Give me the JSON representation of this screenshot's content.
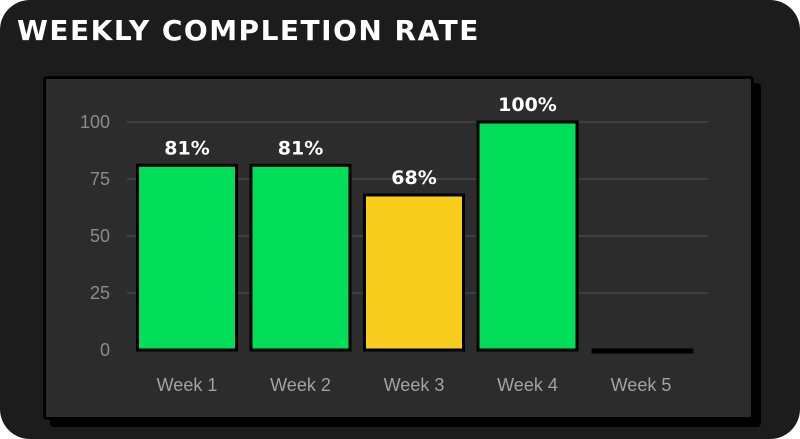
{
  "title": "WEEKLY COMPLETION RATE",
  "colors": {
    "background": "#1c1c1c",
    "panel": "#2c2c2c",
    "grid": "#3f4e5c",
    "high": "#00de5a",
    "mid": "#f8cd1d",
    "outline": "#000000"
  },
  "chart_data": {
    "type": "bar",
    "title": "WEEKLY COMPLETION RATE",
    "categories": [
      "Week 1",
      "Week 2",
      "Week 3",
      "Week 4",
      "Week 5"
    ],
    "values": [
      81,
      81,
      68,
      100,
      0
    ],
    "data_labels": [
      "81%",
      "81%",
      "68%",
      "100%",
      ""
    ],
    "bar_colors": [
      "#00de5a",
      "#00de5a",
      "#f8cd1d",
      "#00de5a",
      "#00de5a"
    ],
    "ylim": [
      0,
      100
    ],
    "yticks": [
      0,
      25,
      50,
      75,
      100
    ],
    "xlabel": "",
    "ylabel": "",
    "grid": true,
    "legend": "none"
  }
}
